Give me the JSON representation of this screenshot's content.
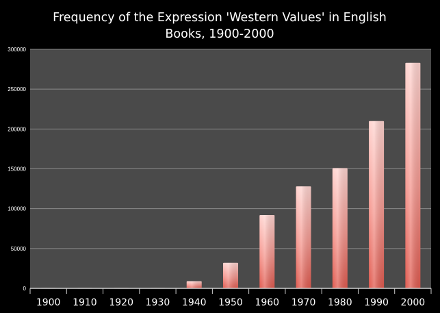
{
  "chart_data": {
    "type": "bar",
    "title_lines": [
      "Frequency of the Expression 'Western Values' in English",
      "Books, 1900-2000"
    ],
    "categories": [
      "1900",
      "1910",
      "1920",
      "1930",
      "1940",
      "1950",
      "1960",
      "1970",
      "1980",
      "1990",
      "2000"
    ],
    "values": [
      500,
      500,
      500,
      500,
      9000,
      32000,
      92000,
      128000,
      151000,
      210000,
      283000
    ],
    "ylim": [
      0,
      300000
    ],
    "yticks": [
      "0",
      "50000",
      "100000",
      "150000",
      "200000",
      "250000",
      "300000"
    ],
    "grid": true,
    "legend": "none",
    "colors": {
      "background": "#000000",
      "plot_area": "#4a4a4a",
      "gridline": "#8a8a8a",
      "bar_light": "#ffd4d0",
      "bar_mid": "#f59890",
      "bar_dark": "#e05a4f",
      "text": "#ffffff"
    }
  }
}
